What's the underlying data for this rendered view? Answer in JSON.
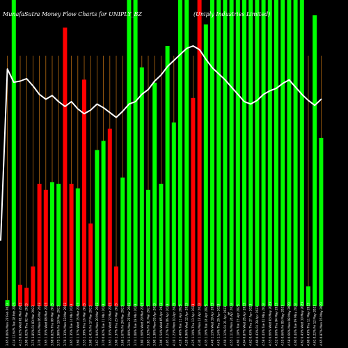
{
  "header": {
    "brand": "MunafaSutra  Money Flow  Charts for UNIPLY_BZ",
    "company": "(Uniply Industries Limited)"
  },
  "colors": {
    "background": "#000000",
    "up": "#00ff00",
    "down": "#ff0000",
    "grid": "#b56a12",
    "line": "#ffffff"
  },
  "chart_data": {
    "type": "bar",
    "title": "MunafaSutra  Money Flow  Charts for UNIPLY_BZ",
    "ylim": [
      0,
      100
    ],
    "grid": true,
    "categories": [
      "3.65 0.06% Mon 27 Feb 2023",
      "4.14 12.64% Tue 28 Feb 2023",
      "4.15 0.02% Wed 01 Mar 2023",
      "3.90 6.02% Thu 02 Mar 2023",
      "3.75 3.85% Fri 03 Mar 2023",
      "3.70 1.33% Mon 06 Mar 2023",
      "3.65 1.35% Wed 08 Mar 2023",
      "3.68 0.82% Thu 09 Mar 2023",
      "3.75 1.90% Fri 10 Mar 2023",
      "3.70 1.33% Mon 13 Mar 2023",
      "3.65 1.35% Tue 14 Mar 2023",
      "3.60 1.37% Wed 15 Mar 2023",
      "3.55 1.39% Thu 16 Mar 2023",
      "3.60 1.41% Fri 17 Mar 2023",
      "3.67 1.94% Mon 20 Mar 2023",
      "3.70 0.82% Tue 21 Mar 2023",
      "3.65 1.35% Wed 22 Mar 2023",
      "3.60 1.37% Thu 23 Mar 2023",
      "3.66 1.67% Fri 24 Mar 2023",
      "3.70 1.09% Mon 27 Mar 2023",
      "3.74 1.08% Tue 28 Mar 2023",
      "3.80 1.60% Wed 29 Mar 2023",
      "3.85 1.32% Fri 31 Mar 2023",
      "3.90 1.30% Mon 03 Apr 2023",
      "3.96 1.54% Wed 05 Apr 2023",
      "4.05 2.27% Thu 06 Apr 2023",
      "4.10 1.23% Mon 10 Apr 2023",
      "4.16 1.46% Tue 11 Apr 2023",
      "4.20 0.96% Wed 12 Apr 2023",
      "4.25 1.19% Thu 13 Apr 2023",
      "4.30 1.18% Mon 17 Apr 2023",
      "4.35 1.16% Tue 18 Apr 2023",
      "4.40 1.15% Wed 19 Apr 2023",
      "4.45 1.14% Thu 20 Apr 2023",
      "4.50 1.12% Fri 21 Apr 2023",
      "4.55 1.11% Mon 24 Apr 2023",
      "4.60 1.10% Tue 25 Apr 2023",
      "4.64 0.87% Wed 26 Apr 2023",
      "4.62 0.43% Thu 27 Apr 2023",
      "4.60 0.43% Fri 28 Apr 2023",
      "4.58 0.43% Tue 02 May 2023",
      "4.55 0.66% Wed 03 May 2023",
      "4.52 0.66% Thu 04 May 2023",
      "4.55 0.66% Fri 05 May 2023",
      "4.58 0.66% Mon 08 May 2023",
      "4.60 0.44% Tue 09 May 2023",
      "4.62 0.43% Wed 10 May 2023",
      "4.60 0.43% Thu 11 May 2023",
      "4.61 0.22% Fri 12 May 2023",
      "4.65 0.87% Mon 15 May 2023"
    ],
    "tick_labels_visible": [
      "3.65 0.06% Mon 27 Feb 2023",
      "4.14 12.64% Tue 28 Feb 2023",
      "4.15 0.02% Wed 01 Mar 2023",
      "3.90 6.02% Thu 02 Mar 2023",
      "3.75 3.85% Fri 03 Mar 2023",
      "3.70 1.33% Mon 06 Mar 2023",
      "3.65 1.35% Wed 08 Mar 2023",
      "3.68 0.82% Thu 09 Mar 2023",
      "3.75 1.90% Fri 10 Mar 2023",
      "3.70 1.33% Mon 13 Mar 2023",
      "3.65 1.35% Tue 14 Mar 2023",
      "3.60 1.37% Wed 15 Mar 2023",
      "3.55 1.39% Thu 16 Mar 2023",
      "3.60 1.41% Fri 17 Mar 2023",
      "3.67 1.94% Mon 20 Mar 2023",
      "3.70 0.82% Tue 21 Mar 2023",
      "3.65 1.35% Wed 22 Mar 2023",
      "3.60 1.37% Thu 23 Mar 2023",
      "3.66 1.67% Fri 24 Mar 2023",
      "3.70 1.09% Mon 27 Mar 2023",
      "3.74 1.08% Tue 28 Mar 2023",
      "3.80 1.60% Wed 29 Mar 2023",
      "3.85 1.32% Fri 31 Mar 2023",
      "3.90 1.30% Mon 03 Apr 2023",
      "3.96 1.54% Wed 05 Apr 2023",
      "4.05 2.27% Thu 06 Apr 2023",
      "4.10 1.23% Mon 10 Apr 2023",
      "4.16 1.46% Tue 11 Apr 2023",
      "4.20 0.96% Wed 12 Apr 2023",
      "4.25 1.19% Thu 13 Apr 2023",
      "4.30 1.18% Mon 17 Apr 2023",
      "4.35 1.16% Tue 18 Apr 2023",
      "4.40 1.15% Wed 19 Apr 2023",
      "4.45 1.14% Thu 20 Apr 2023",
      "4.50 1.12% Fri 21 Apr 2023",
      "4.55 1.11% Mon 24 Apr 2023",
      "4.60 1.10% Tue 25 Apr 2023",
      "4.64 0.87% Wed 26 Apr 2023",
      "4.62 0.43% Thu 27 Apr 2023",
      "4.60 0.43% Fri 28 Apr 2023",
      "4.58 0.43% Tue 02 May 2023",
      "4.55 0.66% Wed 03 May 2023",
      "4.52 0.66% Thu 04 May 2023",
      "4.55 0.66% Fri 05 May 2023",
      "4.58 0.66% Mon 08 May 2023",
      "4.60 0.44% Tue 09 May 2023",
      "4.62 0.43% Wed 10 May 2023",
      "4.60 0.43% Thu 11 May 2023",
      "4.61 0.22% Fri 12 May 2023",
      "4.65 0.87% Mon 15 May 2023"
    ],
    "bars": [
      {
        "value": 2,
        "dir": "up"
      },
      {
        "value": 100,
        "dir": "up"
      },
      {
        "value": 7,
        "dir": "down"
      },
      {
        "value": 6,
        "dir": "down"
      },
      {
        "value": 13,
        "dir": "down"
      },
      {
        "value": 40,
        "dir": "down"
      },
      {
        "value": 38,
        "dir": "down"
      },
      {
        "value": 40.5,
        "dir": "up"
      },
      {
        "value": 40,
        "dir": "up"
      },
      {
        "value": 91,
        "dir": "down"
      },
      {
        "value": 40,
        "dir": "down"
      },
      {
        "value": 38.5,
        "dir": "up"
      },
      {
        "value": 74,
        "dir": "down"
      },
      {
        "value": 27,
        "dir": "down"
      },
      {
        "value": 51,
        "dir": "up"
      },
      {
        "value": 54,
        "dir": "up"
      },
      {
        "value": 58,
        "dir": "down"
      },
      {
        "value": 13,
        "dir": "down"
      },
      {
        "value": 42,
        "dir": "up"
      },
      {
        "value": 100,
        "dir": "up"
      },
      {
        "value": 100,
        "dir": "up"
      },
      {
        "value": 78,
        "dir": "up"
      },
      {
        "value": 38,
        "dir": "up"
      },
      {
        "value": 73,
        "dir": "up"
      },
      {
        "value": 40,
        "dir": "up"
      },
      {
        "value": 85,
        "dir": "up"
      },
      {
        "value": 60,
        "dir": "up"
      },
      {
        "value": 100,
        "dir": "up"
      },
      {
        "value": 100,
        "dir": "up"
      },
      {
        "value": 68,
        "dir": "down"
      },
      {
        "value": 100,
        "dir": "down"
      },
      {
        "value": 92,
        "dir": "up"
      },
      {
        "value": 100,
        "dir": "up"
      },
      {
        "value": 100,
        "dir": "up"
      },
      {
        "value": 100,
        "dir": "up"
      },
      {
        "value": 100,
        "dir": "up"
      },
      {
        "value": 100,
        "dir": "up"
      },
      {
        "value": 100,
        "dir": "up"
      },
      {
        "value": 100,
        "dir": "up"
      },
      {
        "value": 100,
        "dir": "up"
      },
      {
        "value": 100,
        "dir": "up"
      },
      {
        "value": 100,
        "dir": "up"
      },
      {
        "value": 100,
        "dir": "up"
      },
      {
        "value": 100,
        "dir": "up"
      },
      {
        "value": 100,
        "dir": "up"
      },
      {
        "value": 100,
        "dir": "up"
      },
      {
        "value": 100,
        "dir": "up"
      },
      {
        "value": 6.5,
        "dir": "up"
      },
      {
        "value": 95,
        "dir": "up"
      },
      {
        "value": 55,
        "dir": "up"
      }
    ],
    "line_values": [
      81,
      70,
      71,
      73,
      67,
      60,
      56,
      59,
      54,
      50,
      54,
      48,
      44,
      47,
      52,
      49,
      45,
      41,
      46,
      52,
      54,
      60,
      64,
      71,
      76,
      83,
      88,
      93,
      98,
      100,
      97,
      89,
      82,
      77,
      72,
      66,
      60,
      54,
      52,
      55,
      60,
      63,
      65,
      69,
      72,
      66,
      60,
      55,
      51,
      56
    ],
    "marker_label": "$"
  }
}
